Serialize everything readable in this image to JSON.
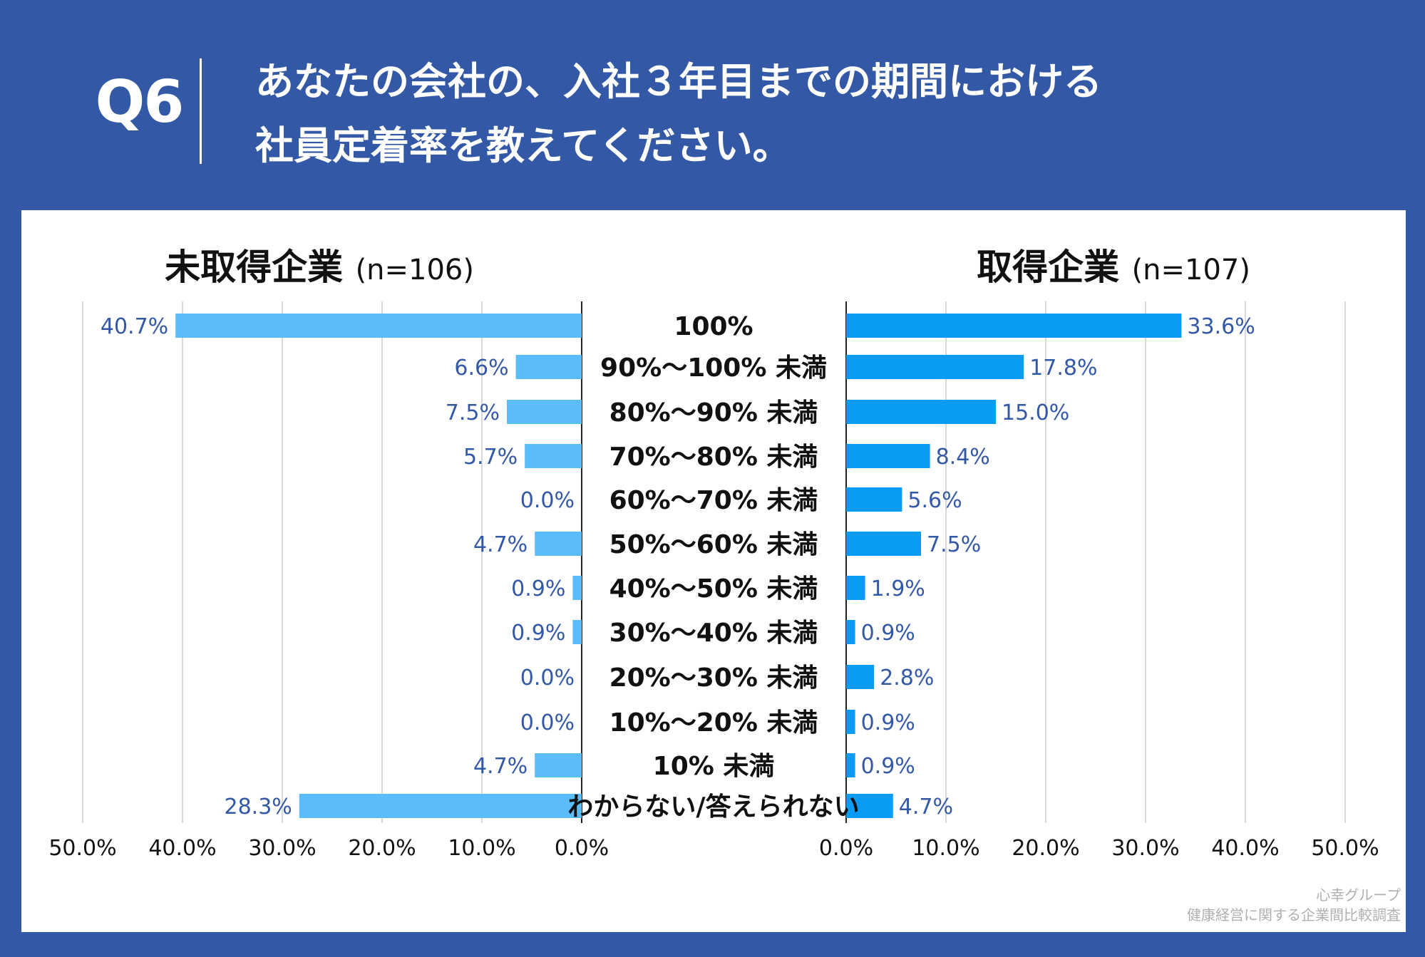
{
  "header": {
    "q_label": "Q6",
    "question_line1": "あなたの会社の、入社３年目までの期間における",
    "question_line2": "社員定着率を教えてください。"
  },
  "footer": {
    "line1": "心幸グループ",
    "line2": "健康経営に関する企業間比較調査"
  },
  "colors": {
    "background": "#3358a6",
    "left_bar": "#5bbcfa",
    "right_bar": "#0a9cf4",
    "value_label": "#3358a6"
  },
  "chart_data": {
    "type": "bar",
    "orientation": "horizontal-butterfly",
    "categories": [
      "100%",
      "90%～100% 未満",
      "80%～90% 未満",
      "70%～80% 未満",
      "60%～70% 未満",
      "50%～60% 未満",
      "40%～50% 未満",
      "30%～40% 未満",
      "20%～30% 未満",
      "10%～20% 未満",
      "10% 未満",
      "わからない/答えられない"
    ],
    "series": [
      {
        "name": "未取得企業",
        "n_label": "(n=106)",
        "values": [
          40.7,
          6.6,
          7.5,
          5.7,
          0.0,
          4.7,
          0.9,
          0.9,
          0.0,
          0.0,
          4.7,
          28.3
        ],
        "value_labels": [
          "40.7%",
          "6.6%",
          "7.5%",
          "5.7%",
          "0.0%",
          "4.7%",
          "0.9%",
          "0.9%",
          "0.0%",
          "0.0%",
          "4.7%",
          "28.3%"
        ]
      },
      {
        "name": "取得企業",
        "n_label": "(n=107)",
        "values": [
          33.6,
          17.8,
          15.0,
          8.4,
          5.6,
          7.5,
          1.9,
          0.9,
          2.8,
          0.9,
          0.9,
          4.7
        ],
        "value_labels": [
          "33.6%",
          "17.8%",
          "15.0%",
          "8.4%",
          "5.6%",
          "7.5%",
          "1.9%",
          "0.9%",
          "2.8%",
          "0.9%",
          "0.9%",
          "4.7%"
        ]
      }
    ],
    "xlim": [
      0,
      50
    ],
    "ticks": [
      0,
      10,
      20,
      30,
      40,
      50
    ],
    "left_tick_labels": [
      "0.0%",
      "10.0%",
      "20.0%",
      "30.0%",
      "40.0%",
      "50.0%"
    ],
    "right_tick_labels": [
      "0.0%",
      "10.0%",
      "20.0%",
      "30.0%",
      "40.0%",
      "50.0%"
    ],
    "grid": true
  }
}
